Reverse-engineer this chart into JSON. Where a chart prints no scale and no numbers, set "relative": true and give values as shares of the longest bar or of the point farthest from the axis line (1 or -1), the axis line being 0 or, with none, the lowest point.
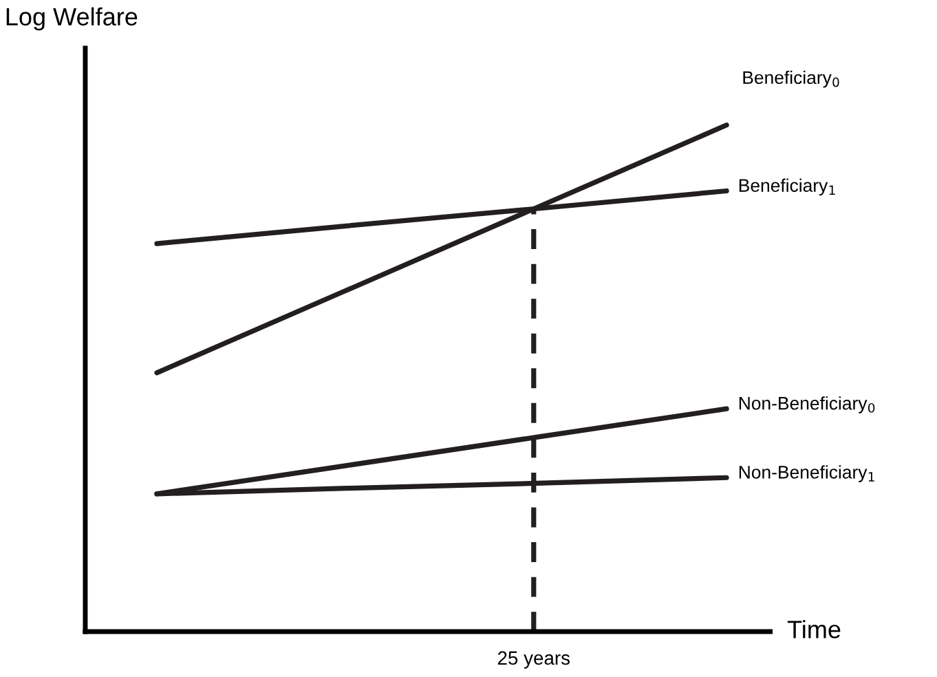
{
  "chart_data": {
    "type": "line",
    "relative": true,
    "xlabel": "Time",
    "ylabel": "Log Welfare",
    "categories": [
      null,
      null,
      null,
      null
    ],
    "annotations": [
      "25 years"
    ],
    "grid": false,
    "legend": false,
    "marker": "none",
    "series": [
      {
        "name": "Beneficiary$_{0}$",
        "color": "#231f20",
        "values": [
          0.511,
          0.674,
          0.837,
          1.0
        ]
      },
      {
        "name": "Beneficiary$_{1}$",
        "color": "#231f20",
        "values": [
          0.766,
          0.801,
          0.835,
          0.87
        ]
      },
      {
        "name": "Non-Beneficiary$_{0}$",
        "color": "#231f20",
        "values": [
          0.272,
          0.328,
          0.384,
          0.44
        ]
      },
      {
        "name": "Non-Beneficiary$_{1}$",
        "color": "#231f20",
        "values": [
          0.272,
          0.283,
          0.293,
          0.304
        ]
      }
    ]
  }
}
